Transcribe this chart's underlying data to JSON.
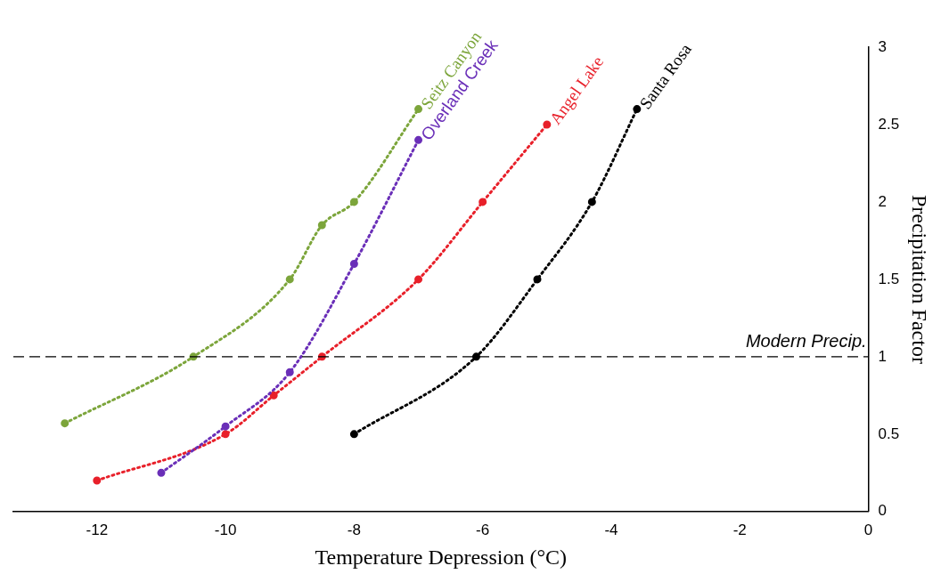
{
  "chart_data": {
    "type": "line",
    "xlabel": "Temperature Depression (°C)",
    "ylabel": "Precipitation Factor",
    "xlim": [
      -13.3,
      0
    ],
    "xticks": [
      -12,
      -10,
      -8,
      -6,
      -4,
      -2,
      0
    ],
    "ylim": [
      0,
      3
    ],
    "yticks": [
      0,
      0.5,
      1,
      1.5,
      2,
      2.5,
      3
    ],
    "grid": false,
    "legend": false,
    "marker": "circle",
    "line_style": "dotted",
    "ref_lines": [
      {
        "axis": "y",
        "value": 1,
        "label": "Modern Precip.",
        "color": "#000000",
        "line_style": "dashed"
      }
    ],
    "series": [
      {
        "name": "Seitz Canyon",
        "color": "#7ca53b",
        "x": [
          -12.5,
          -10.5,
          -9,
          -8.5,
          -8,
          -7
        ],
        "values": [
          0.57,
          1,
          1.5,
          1.85,
          2,
          2.6
        ]
      },
      {
        "name": "Overland Creek",
        "color": "#6a2fb8",
        "x": [
          -11,
          -10,
          -9,
          -8,
          -7
        ],
        "values": [
          0.25,
          0.55,
          0.9,
          1.6,
          2.4
        ]
      },
      {
        "name": "Angel Lake",
        "color": "#e8202a",
        "x": [
          -12,
          -10,
          -9.25,
          -8.5,
          -7,
          -6,
          -5
        ],
        "values": [
          0.2,
          0.5,
          0.75,
          1,
          1.5,
          2,
          2.5
        ]
      },
      {
        "name": "Santa Rosa",
        "color": "#000000",
        "x": [
          -8,
          -6.1,
          -5.15,
          -4.3,
          -3.6
        ],
        "values": [
          0.5,
          1,
          1.5,
          2,
          2.6
        ]
      }
    ]
  }
}
